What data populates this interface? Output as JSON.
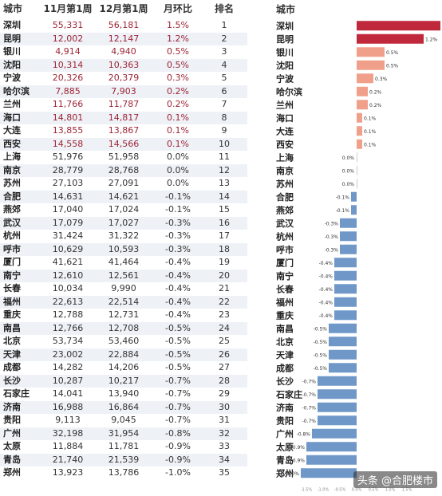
{
  "table": {
    "headers": {
      "city": "城市",
      "nov": "11月第1周",
      "dec": "12月第1周",
      "mom": "月环比",
      "rank": "排名"
    },
    "rows": [
      {
        "city": "深圳",
        "nov": "55,331",
        "dec": "56,181",
        "mom": "1.5%",
        "rank": "1"
      },
      {
        "city": "昆明",
        "nov": "12,002",
        "dec": "12,147",
        "mom": "1.2%",
        "rank": "2"
      },
      {
        "city": "银川",
        "nov": "4,914",
        "dec": "4,940",
        "mom": "0.5%",
        "rank": "3"
      },
      {
        "city": "沈阳",
        "nov": "10,314",
        "dec": "10,363",
        "mom": "0.5%",
        "rank": "4"
      },
      {
        "city": "宁波",
        "nov": "20,326",
        "dec": "20,379",
        "mom": "0.3%",
        "rank": "5"
      },
      {
        "city": "哈尔滨",
        "nov": "7,885",
        "dec": "7,903",
        "mom": "0.2%",
        "rank": "6"
      },
      {
        "city": "兰州",
        "nov": "11,766",
        "dec": "11,787",
        "mom": "0.2%",
        "rank": "7"
      },
      {
        "city": "海口",
        "nov": "14,801",
        "dec": "14,817",
        "mom": "0.1%",
        "rank": "8"
      },
      {
        "city": "大连",
        "nov": "13,855",
        "dec": "13,867",
        "mom": "0.1%",
        "rank": "9"
      },
      {
        "city": "西安",
        "nov": "14,558",
        "dec": "14,566",
        "mom": "0.1%",
        "rank": "10"
      },
      {
        "city": "上海",
        "nov": "51,976",
        "dec": "51,958",
        "mom": "0.0%",
        "rank": "11"
      },
      {
        "city": "南京",
        "nov": "28,779",
        "dec": "28,768",
        "mom": "0.0%",
        "rank": "12"
      },
      {
        "city": "苏州",
        "nov": "27,103",
        "dec": "27,091",
        "mom": "0.0%",
        "rank": "13"
      },
      {
        "city": "合肥",
        "nov": "14,631",
        "dec": "14,621",
        "mom": "-0.1%",
        "rank": "14"
      },
      {
        "city": "燕郊",
        "nov": "17,040",
        "dec": "17,024",
        "mom": "-0.1%",
        "rank": "15"
      },
      {
        "city": "武汉",
        "nov": "17,079",
        "dec": "17,027",
        "mom": "-0.3%",
        "rank": "16"
      },
      {
        "city": "杭州",
        "nov": "31,424",
        "dec": "31,322",
        "mom": "-0.3%",
        "rank": "17"
      },
      {
        "city": "呼市",
        "nov": "10,629",
        "dec": "10,593",
        "mom": "-0.3%",
        "rank": "18"
      },
      {
        "city": "厦门",
        "nov": "41,621",
        "dec": "41,464",
        "mom": "-0.4%",
        "rank": "19"
      },
      {
        "city": "南宁",
        "nov": "12,610",
        "dec": "12,561",
        "mom": "-0.4%",
        "rank": "20"
      },
      {
        "city": "长春",
        "nov": "10,034",
        "dec": "9,990",
        "mom": "-0.4%",
        "rank": "21"
      },
      {
        "city": "福州",
        "nov": "22,613",
        "dec": "22,514",
        "mom": "-0.4%",
        "rank": "22"
      },
      {
        "city": "重庆",
        "nov": "12,788",
        "dec": "12,731",
        "mom": "-0.4%",
        "rank": "23"
      },
      {
        "city": "南昌",
        "nov": "12,766",
        "dec": "12,708",
        "mom": "-0.5%",
        "rank": "24"
      },
      {
        "city": "北京",
        "nov": "53,734",
        "dec": "53,460",
        "mom": "-0.5%",
        "rank": "25"
      },
      {
        "city": "天津",
        "nov": "23,002",
        "dec": "22,884",
        "mom": "-0.5%",
        "rank": "26"
      },
      {
        "city": "成都",
        "nov": "14,282",
        "dec": "14,206",
        "mom": "-0.5%",
        "rank": "27"
      },
      {
        "city": "长沙",
        "nov": "10,287",
        "dec": "10,217",
        "mom": "-0.7%",
        "rank": "28"
      },
      {
        "city": "石家庄",
        "nov": "14,041",
        "dec": "13,940",
        "mom": "-0.7%",
        "rank": "29"
      },
      {
        "city": "济南",
        "nov": "16,988",
        "dec": "16,864",
        "mom": "-0.7%",
        "rank": "30"
      },
      {
        "city": "贵阳",
        "nov": "9,113",
        "dec": "9,045",
        "mom": "-0.7%",
        "rank": "31"
      },
      {
        "city": "广州",
        "nov": "32,198",
        "dec": "31,954",
        "mom": "-0.8%",
        "rank": "32"
      },
      {
        "city": "太原",
        "nov": "11,884",
        "dec": "11,781",
        "mom": "-0.9%",
        "rank": "33"
      },
      {
        "city": "青岛",
        "nov": "21,740",
        "dec": "21,539",
        "mom": "-0.9%",
        "rank": "34"
      },
      {
        "city": "郑州",
        "nov": "13,923",
        "dec": "13,786",
        "mom": "-1.0%",
        "rank": "35"
      }
    ]
  },
  "chart_data": {
    "type": "bar",
    "orientation": "horizontal",
    "category_label": "城市",
    "categories": [
      "深圳",
      "昆明",
      "银川",
      "沈阳",
      "宁波",
      "哈尔滨",
      "兰州",
      "海口",
      "大连",
      "西安",
      "上海",
      "南京",
      "苏州",
      "合肥",
      "燕郊",
      "武汉",
      "杭州",
      "呼市",
      "厦门",
      "南宁",
      "长春",
      "福州",
      "重庆",
      "南昌",
      "北京",
      "天津",
      "成都",
      "长沙",
      "石家庄",
      "济南",
      "贵阳",
      "广州",
      "太原",
      "青岛",
      "郑州"
    ],
    "values": [
      1.5,
      1.2,
      0.5,
      0.5,
      0.3,
      0.2,
      0.2,
      0.1,
      0.1,
      0.1,
      0.0,
      0.0,
      0.0,
      -0.1,
      -0.1,
      -0.3,
      -0.3,
      -0.3,
      -0.4,
      -0.4,
      -0.4,
      -0.4,
      -0.4,
      -0.5,
      -0.5,
      -0.5,
      -0.5,
      -0.7,
      -0.7,
      -0.7,
      -0.7,
      -0.8,
      -0.9,
      -0.9,
      -1.0
    ],
    "value_labels": [
      "1.5%",
      "1.2%",
      "0.5%",
      "0.5%",
      "0.3%",
      "0.2%",
      "0.2%",
      "0.1%",
      "0.1%",
      "0.1%",
      "0.0%",
      "0.0%",
      "0.0%",
      "-0.1%",
      "-0.1%",
      "-0.3%",
      "-0.3%",
      "-0.3%",
      "-0.4%",
      "-0.4%",
      "-0.4%",
      "-0.4%",
      "-0.4%",
      "-0.5%",
      "-0.5%",
      "-0.5%",
      "-0.5%",
      "-0.7%",
      "-0.7%",
      "-0.7%",
      "-0.7%",
      "-0.8%",
      "-0.9%",
      "-0.9%",
      "-1.0%"
    ],
    "xlim": [
      -1.5,
      1.5
    ],
    "x_ticks": [
      "-1.5%",
      "-1.0%",
      "-0.5%",
      "0.0%",
      "0.5%",
      "1.0%",
      "1.5%"
    ],
    "grid": false,
    "colors": {
      "positive_strong": "#c0283c",
      "positive_light": "#f0a08a",
      "negative": "#6f98c9",
      "zero": "#cccccc"
    }
  },
  "watermark": "头条 @合肥楼市"
}
